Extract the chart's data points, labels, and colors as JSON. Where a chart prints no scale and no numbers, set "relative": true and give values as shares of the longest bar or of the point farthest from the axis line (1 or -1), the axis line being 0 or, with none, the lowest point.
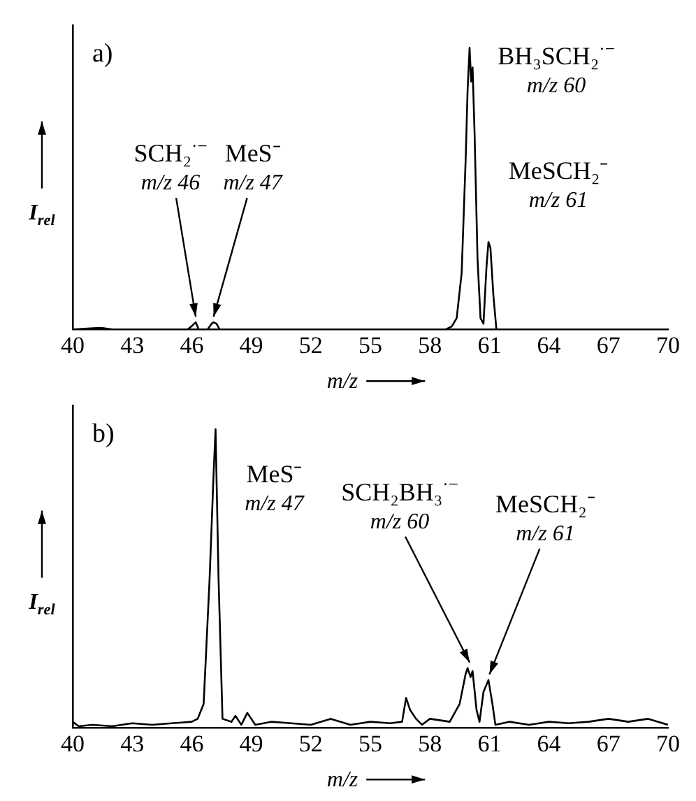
{
  "chart_data": [
    {
      "type": "line",
      "title": "a)",
      "xlabel": "m/z",
      "ylabel": "I$_{rel}$",
      "relative": true,
      "xlim": [
        40,
        70
      ],
      "xticks": [
        40,
        43,
        46,
        49,
        52,
        55,
        58,
        61,
        64,
        67,
        70
      ],
      "grid": false,
      "legend": false,
      "marker": "none",
      "series": [
        {
          "color": "#000000",
          "x": [
            40,
            41.2,
            41.5,
            42,
            44.5,
            45.8,
            46.05,
            46.2,
            46.35,
            46.8,
            47.0,
            47.1,
            47.25,
            47.4,
            48,
            52,
            58.8,
            59.1,
            59.35,
            59.6,
            59.8,
            59.9,
            60.0,
            60.08,
            60.15,
            60.25,
            60.4,
            60.55,
            60.7,
            60.85,
            60.95,
            61.05,
            61.2,
            61.35,
            62,
            70
          ],
          "values": [
            0,
            0.005,
            0.005,
            0,
            0,
            0,
            0.015,
            0.025,
            0,
            0,
            0.02,
            0.025,
            0.02,
            0,
            0,
            0,
            0,
            0.01,
            0.04,
            0.2,
            0.6,
            0.85,
            1.0,
            0.88,
            0.93,
            0.7,
            0.25,
            0.04,
            0.02,
            0.22,
            0.31,
            0.29,
            0.12,
            0,
            0,
            0
          ]
        }
      ],
      "annotations": [
        {
          "text": "SCH₂$^{·−}$\nm/z 46",
          "x": 46.2,
          "y": 0.025
        },
        {
          "text": "MeS⁻\nm/z 47",
          "x": 47.1,
          "y": 0.025
        },
        {
          "text": "BH₃SCH₂$^{·−}$\nm/z 60",
          "x": 60,
          "y": 1
        },
        {
          "text": "MeSCH₂⁻\nm/z 61",
          "x": 60.95,
          "y": 0.31
        }
      ]
    },
    {
      "type": "line",
      "title": "b)",
      "xlabel": "m/z",
      "ylabel": "I$_{rel}$",
      "relative": true,
      "xlim": [
        40,
        70
      ],
      "xticks": [
        40,
        43,
        46,
        49,
        52,
        55,
        58,
        61,
        64,
        67,
        70
      ],
      "grid": false,
      "legend": false,
      "marker": "none",
      "series": [
        {
          "color": "#000000",
          "x": [
            40,
            40.3,
            41,
            42,
            43,
            44,
            45,
            46,
            46.3,
            46.6,
            46.9,
            47.1,
            47.2,
            47.35,
            47.55,
            48,
            48.2,
            48.5,
            48.8,
            49.2,
            50,
            51,
            52,
            53,
            54,
            55,
            56,
            56.6,
            56.8,
            57,
            57.3,
            57.6,
            58,
            59,
            59.5,
            59.8,
            59.9,
            60.05,
            60.15,
            60.35,
            60.5,
            60.7,
            60.95,
            61.15,
            61.3,
            62,
            63,
            64,
            65,
            66,
            67,
            68,
            69,
            69.5,
            70
          ],
          "values": [
            0.02,
            0.005,
            0.01,
            0.005,
            0.015,
            0.01,
            0.015,
            0.02,
            0.03,
            0.08,
            0.5,
            0.85,
            1.0,
            0.5,
            0.03,
            0.02,
            0.04,
            0.01,
            0.05,
            0.01,
            0.02,
            0.015,
            0.01,
            0.03,
            0.01,
            0.02,
            0.015,
            0.02,
            0.1,
            0.06,
            0.03,
            0.01,
            0.03,
            0.02,
            0.08,
            0.18,
            0.2,
            0.17,
            0.19,
            0.06,
            0.02,
            0.12,
            0.16,
            0.08,
            0.01,
            0.02,
            0.01,
            0.02,
            0.015,
            0.02,
            0.03,
            0.02,
            0.03,
            0.02,
            0.01
          ]
        }
      ],
      "annotations": [
        {
          "text": "MeS⁻\nm/z 47",
          "x": 47.2,
          "y": 1
        },
        {
          "text": "SCH₂BH₃$^{·−}$\nm/z 60",
          "x": 60,
          "y": 0.2
        },
        {
          "text": "MeSCH₂⁻\nm/z 61",
          "x": 61,
          "y": 0.16
        }
      ]
    }
  ]
}
